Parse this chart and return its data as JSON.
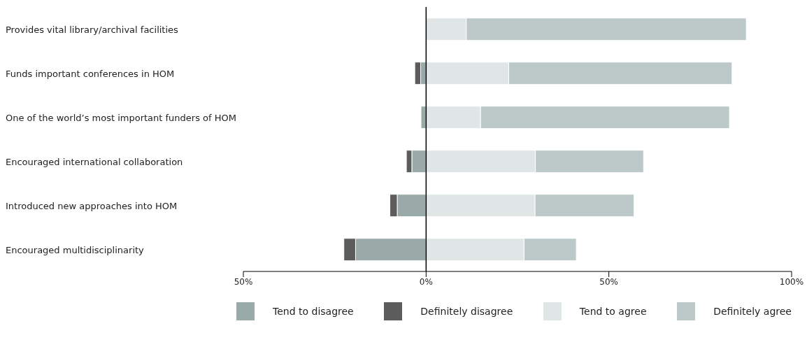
{
  "chart_data": {
    "type": "bar",
    "orientation": "horizontal",
    "stacked": true,
    "categories": [
      "Provides vital library/archival facilities",
      "Funds important conferences in HOM",
      "One of the world’s most important funders of HOM",
      "Encouraged international collaboration",
      "Introduced new approaches into HOM",
      "Encouraged multidisciplinarity"
    ],
    "series": [
      {
        "name": "Tend to disagree",
        "color": "#99aaa9",
        "values": [
          0,
          -1.5,
          -1.4,
          -3.9,
          -7.9,
          -19.3
        ]
      },
      {
        "name": "Definitely disagree",
        "color": "#5c5c5c",
        "values": [
          0,
          -1.6,
          0,
          -1.5,
          -2,
          -3.2
        ]
      },
      {
        "name": "Tend to agree",
        "color": "#e0e6e6",
        "values": [
          11,
          22.6,
          14.9,
          29.9,
          29.8,
          26.8
        ]
      },
      {
        "name": "Definitely agree",
        "color": "#bdc9c9",
        "values": [
          76.6,
          61.1,
          68.1,
          29.6,
          27.1,
          14.3
        ]
      }
    ],
    "xlim": [
      -50,
      100
    ],
    "xticks": [
      {
        "value": -50,
        "label": "50%"
      },
      {
        "value": 0,
        "label": "0%"
      },
      {
        "value": 50,
        "label": "50%"
      },
      {
        "value": 100,
        "label": "100%"
      }
    ],
    "ref_lines": [
      {
        "axis": "x",
        "value": 0,
        "color": "#000000"
      }
    ],
    "grid": false,
    "legend": "bottom"
  }
}
